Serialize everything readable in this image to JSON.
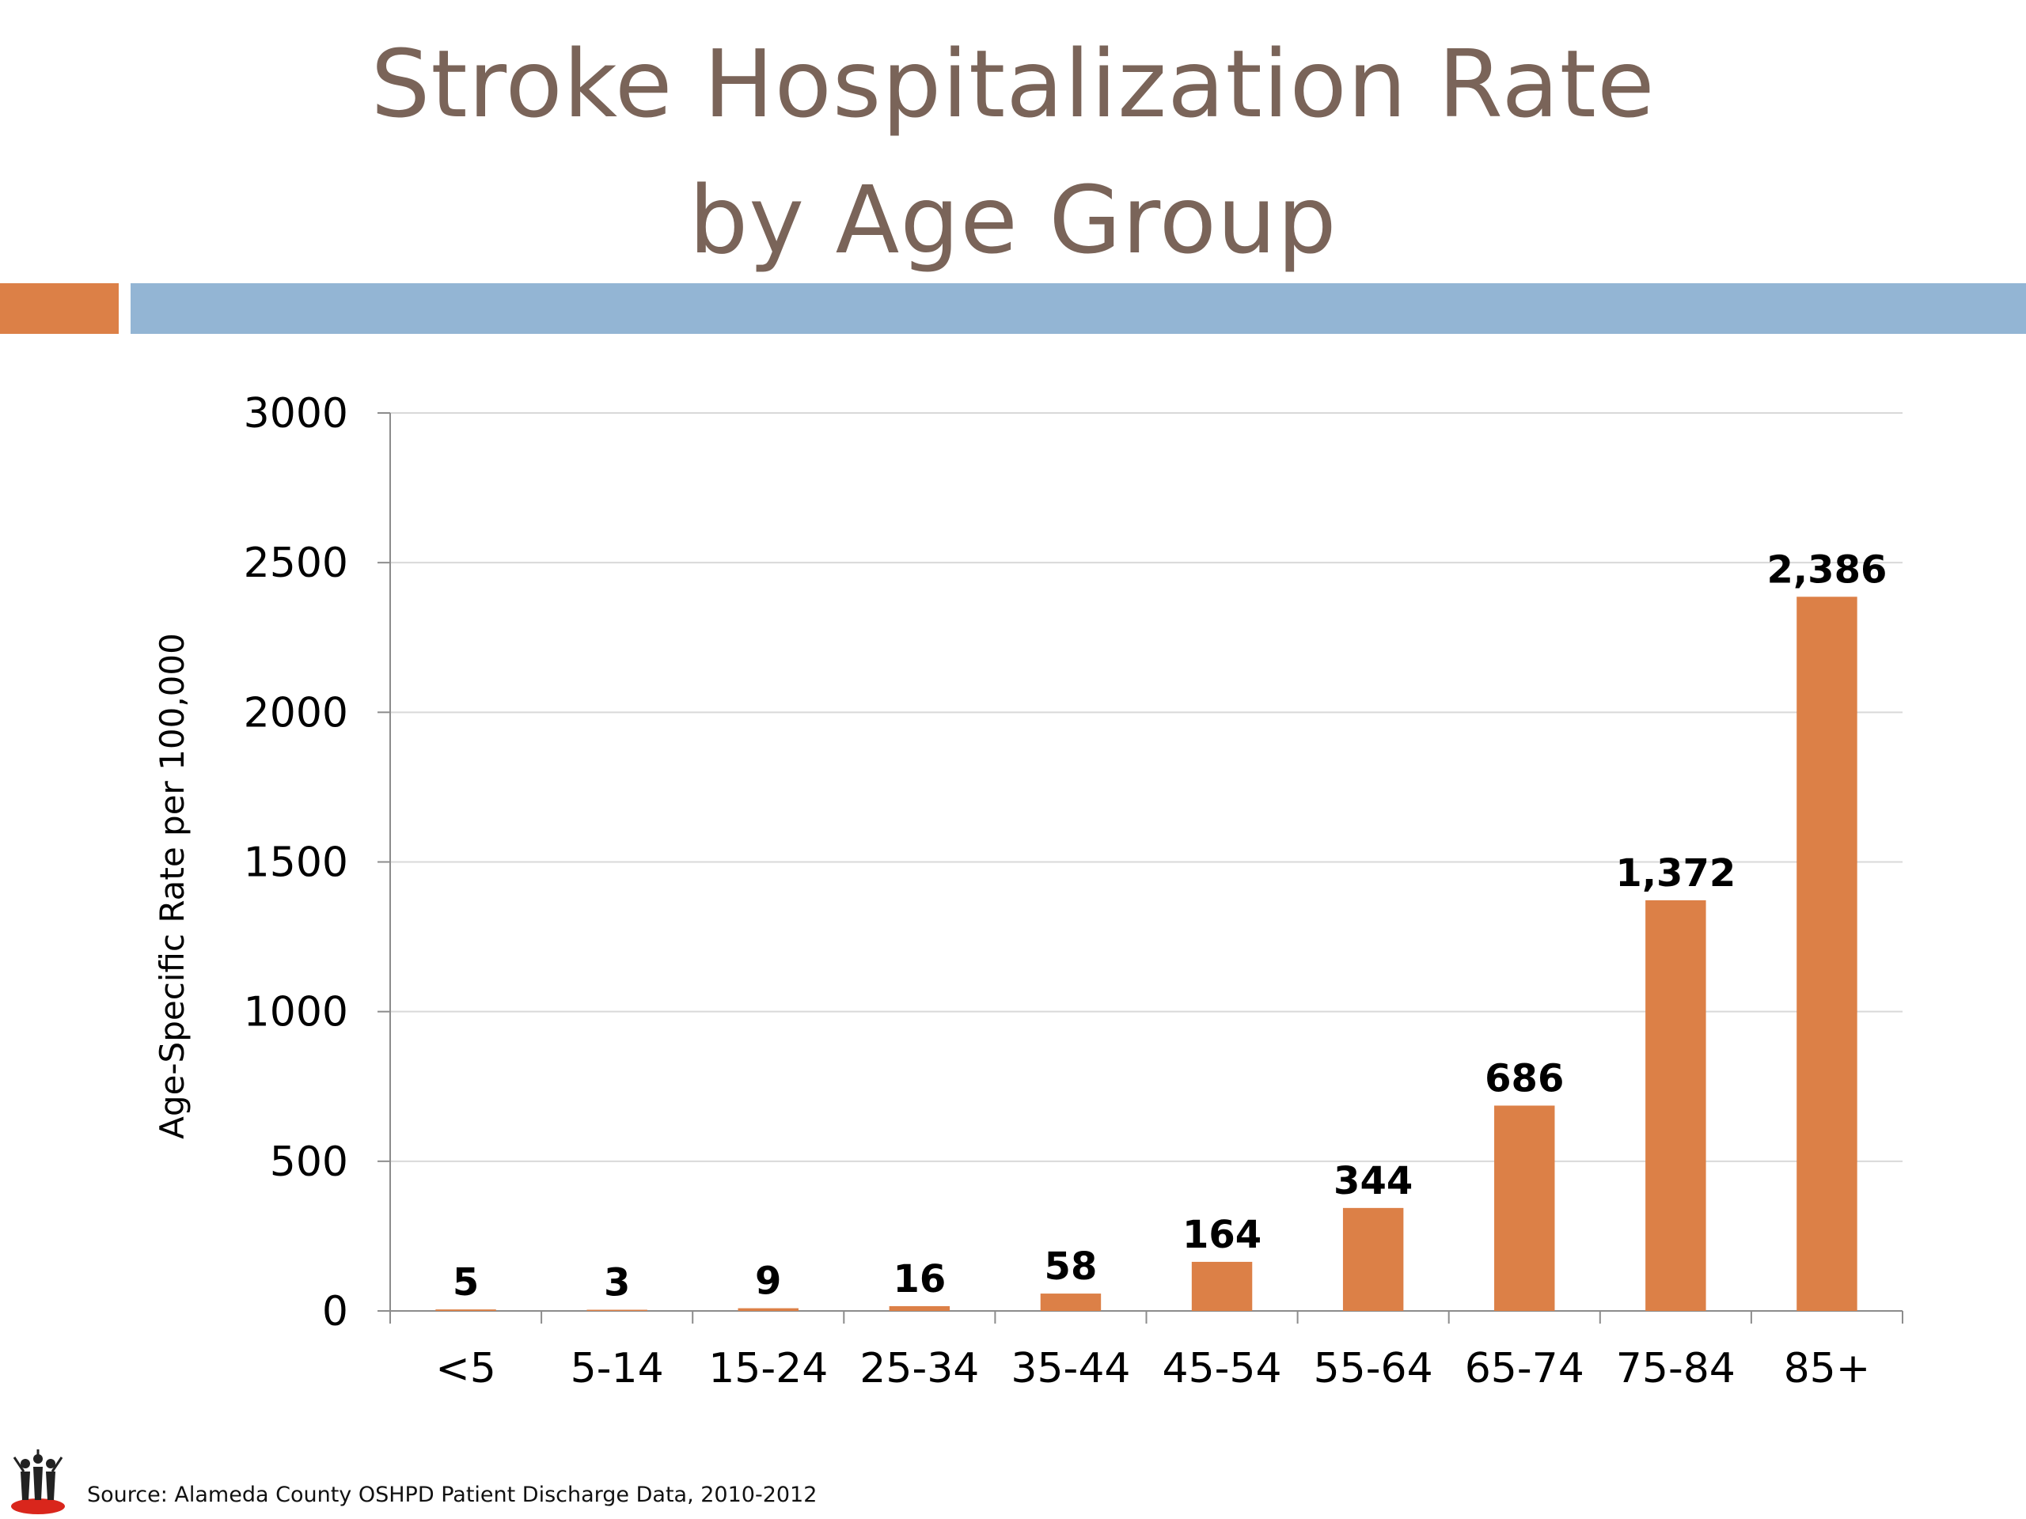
{
  "slide": {
    "title_line1": "Stroke Hospitalization Rate",
    "title_line2": "by Age Group",
    "source": "Source:  Alameda County OSHPD Patient Discharge Data, 2010-2012",
    "accent_orange": "#dc8047",
    "accent_blue": "#93b5d4",
    "title_color": "#7a6459",
    "logo_icon": "community-figures-logo"
  },
  "chart_data": {
    "type": "bar",
    "title": "Stroke Hospitalization Rate by Age Group",
    "xlabel": "",
    "ylabel": "Age-Specific Rate per 100,000",
    "categories": [
      "<5",
      "5-14",
      "15-24",
      "25-34",
      "35-44",
      "45-54",
      "55-64",
      "65-74",
      "75-84",
      "85+"
    ],
    "values": [
      5,
      3,
      9,
      16,
      58,
      164,
      344,
      686,
      1372,
      2386
    ],
    "data_labels": [
      "5",
      "3",
      "9",
      "16",
      "58",
      "164",
      "344",
      "686",
      "1,372",
      "2,386"
    ],
    "ylim": [
      0,
      3000
    ],
    "yticks": [
      0,
      500,
      1000,
      1500,
      2000,
      2500,
      3000
    ],
    "grid": true,
    "legend": "none",
    "bar_color": "#dc8047"
  }
}
